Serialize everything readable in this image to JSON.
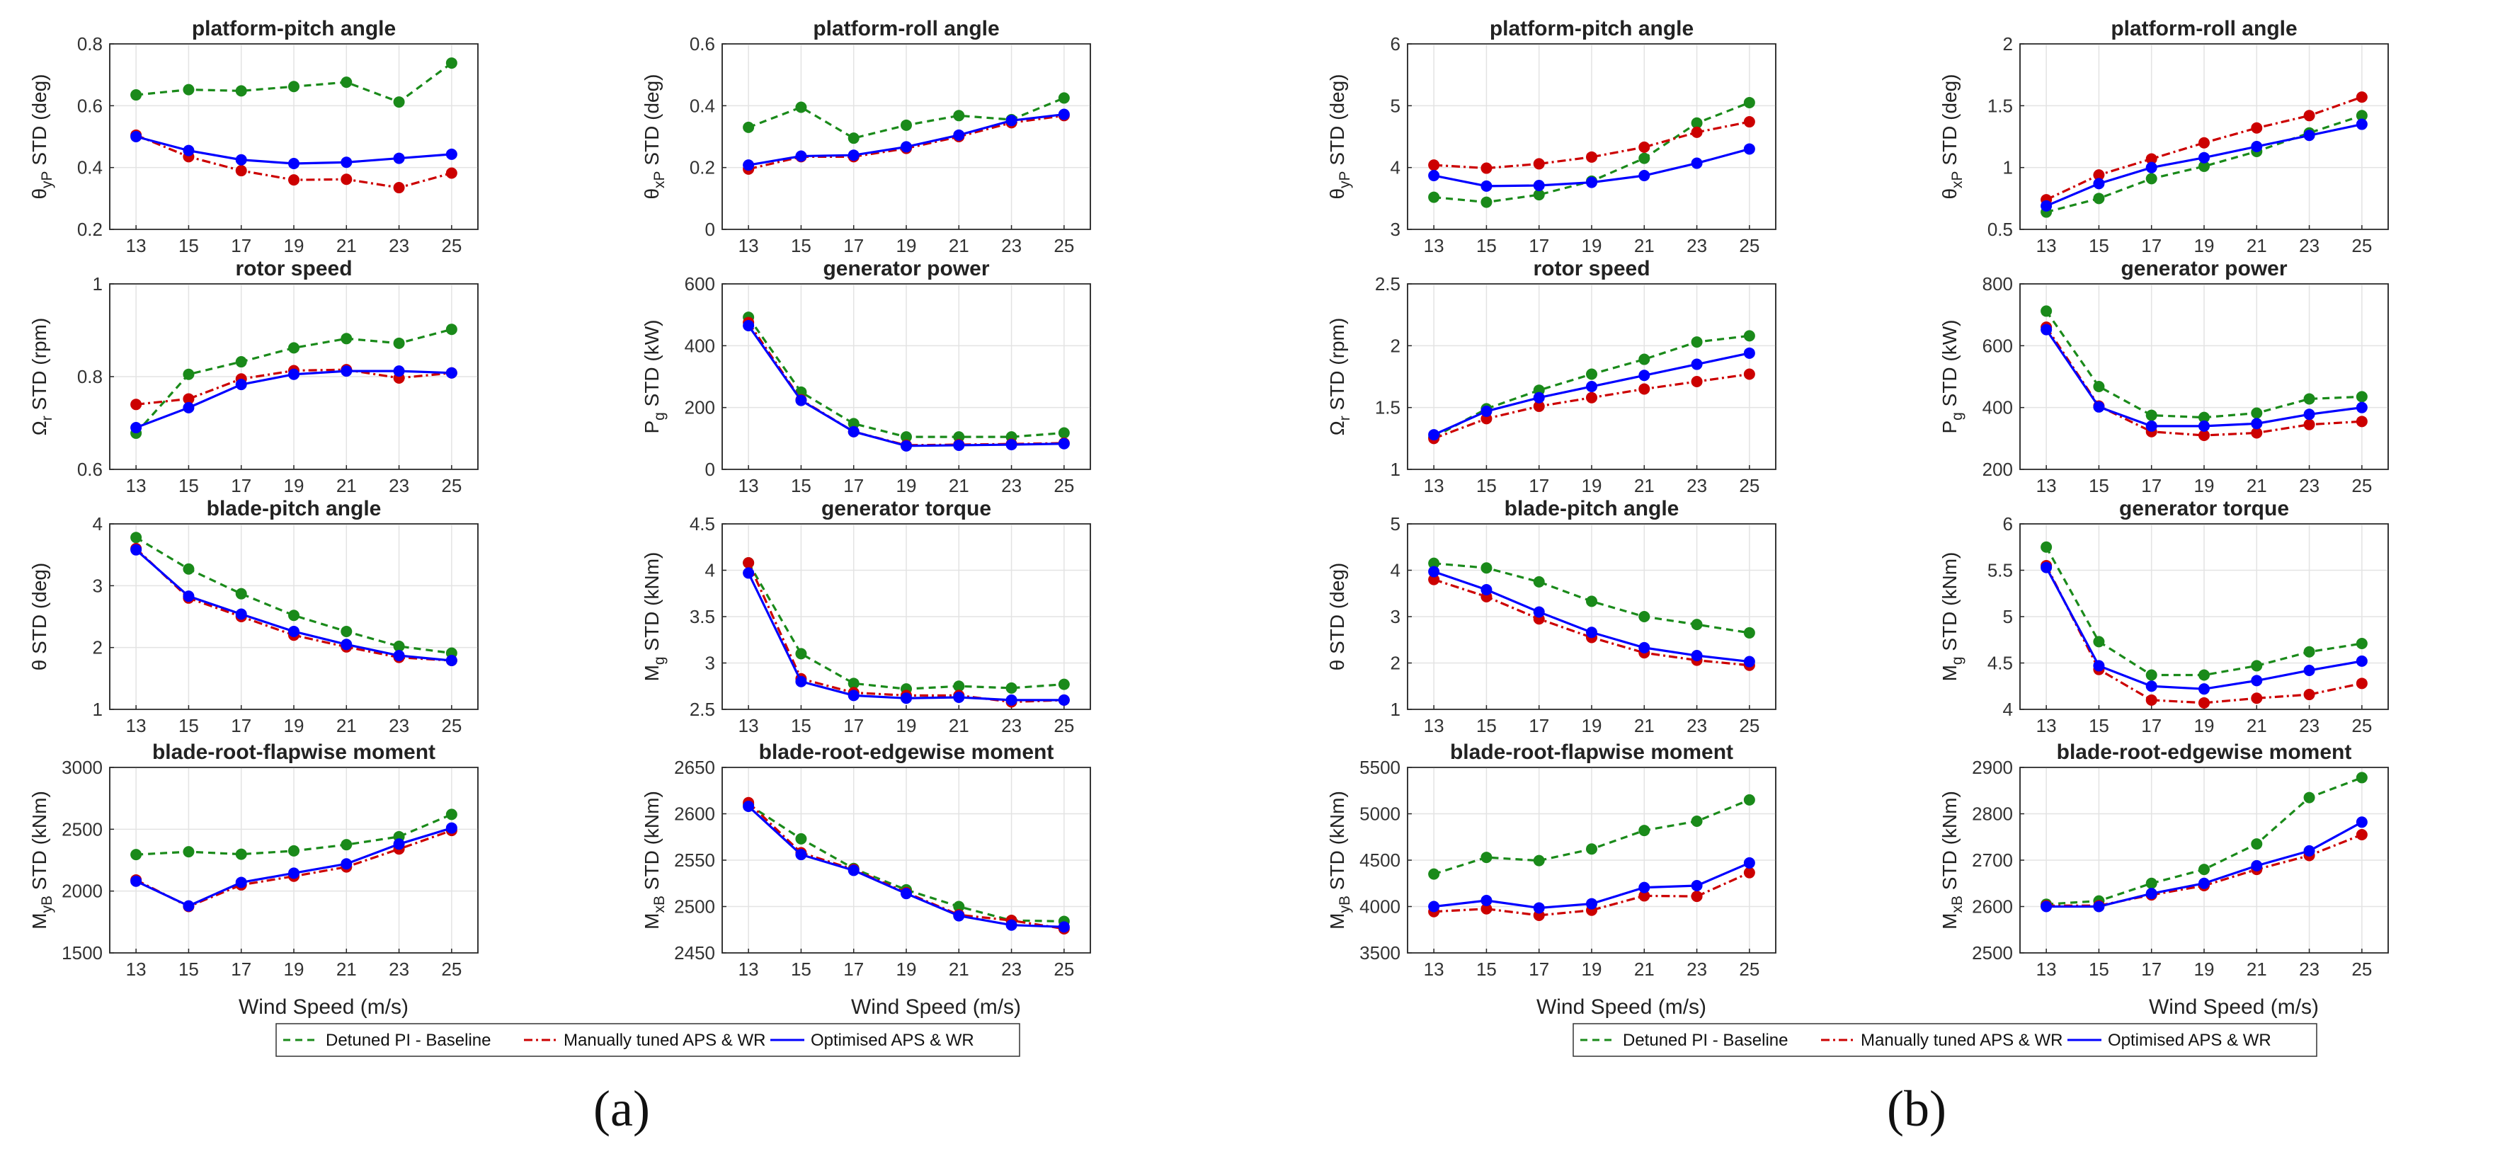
{
  "colors": {
    "baseline": "#1a8a1a",
    "manual": "#cc0000",
    "optimised": "#0000ff"
  },
  "panels": [
    {
      "label": "(a)",
      "xlabel": "Wind Speed (m/s)",
      "legend": [
        "Detuned PI - Baseline",
        "Manually tuned APS & WR",
        "Optimised APS & WR"
      ]
    },
    {
      "label": "(b)",
      "xlabel": "Wind Speed (m/s)",
      "legend": [
        "Detuned PI - Baseline",
        "Manually tuned APS & WR",
        "Optimised APS & WR"
      ]
    }
  ],
  "chart_data": [
    {
      "type": "line",
      "panel": "a",
      "title": "platform-pitch angle",
      "ylabel": "θ_yP STD (deg)",
      "ylim": [
        0.2,
        0.8
      ],
      "yticks": [
        0.2,
        0.4,
        0.6,
        0.8
      ],
      "yticklabels": [
        "0.2",
        "0.4",
        "0.6",
        "0.8"
      ],
      "x": [
        13,
        15,
        17,
        19,
        21,
        23,
        25
      ],
      "series": [
        {
          "name": "Detuned PI - Baseline",
          "values": [
            0.635,
            0.652,
            0.648,
            0.662,
            0.676,
            0.612,
            0.738
          ]
        },
        {
          "name": "Manually tuned APS & WR",
          "values": [
            0.505,
            0.435,
            0.39,
            0.36,
            0.362,
            0.335,
            0.382
          ]
        },
        {
          "name": "Optimised APS & WR",
          "values": [
            0.5,
            0.455,
            0.425,
            0.413,
            0.417,
            0.43,
            0.443
          ]
        }
      ]
    },
    {
      "type": "line",
      "panel": "a",
      "title": "platform-roll angle",
      "ylabel": "θ_xP STD (deg)",
      "ylim": [
        0,
        0.6
      ],
      "yticks": [
        0,
        0.2,
        0.4,
        0.6
      ],
      "yticklabels": [
        "0",
        "0.2",
        "0.4",
        "0.6"
      ],
      "x": [
        13,
        15,
        17,
        19,
        21,
        23,
        25
      ],
      "series": [
        {
          "name": "Detuned PI - Baseline",
          "values": [
            0.33,
            0.395,
            0.295,
            0.337,
            0.368,
            0.355,
            0.425
          ]
        },
        {
          "name": "Manually tuned APS & WR",
          "values": [
            0.195,
            0.235,
            0.235,
            0.262,
            0.3,
            0.345,
            0.368
          ]
        },
        {
          "name": "Optimised APS & WR",
          "values": [
            0.208,
            0.237,
            0.24,
            0.267,
            0.305,
            0.352,
            0.372
          ]
        }
      ]
    },
    {
      "type": "line",
      "panel": "b",
      "title": "platform-pitch angle",
      "ylabel": "θ_yP STD (deg)",
      "ylim": [
        3,
        6
      ],
      "yticks": [
        3,
        4,
        5,
        6
      ],
      "yticklabels": [
        "3",
        "4",
        "5",
        "6"
      ],
      "x": [
        13,
        15,
        17,
        19,
        21,
        23,
        25
      ],
      "series": [
        {
          "name": "Detuned PI - Baseline",
          "values": [
            3.52,
            3.44,
            3.56,
            3.78,
            4.15,
            4.72,
            5.05
          ]
        },
        {
          "name": "Manually tuned APS & WR",
          "values": [
            4.04,
            3.99,
            4.06,
            4.17,
            4.33,
            4.57,
            4.74
          ]
        },
        {
          "name": "Optimised APS & WR",
          "values": [
            3.87,
            3.7,
            3.71,
            3.76,
            3.87,
            4.07,
            4.3
          ]
        }
      ]
    },
    {
      "type": "line",
      "panel": "b",
      "title": "platform-roll angle",
      "ylabel": "θ_xP STD (deg)",
      "ylim": [
        0.5,
        2
      ],
      "yticks": [
        0.5,
        1,
        1.5,
        2
      ],
      "yticklabels": [
        "0.5",
        "1",
        "1.5",
        "2"
      ],
      "x": [
        13,
        15,
        17,
        19,
        21,
        23,
        25
      ],
      "series": [
        {
          "name": "Detuned PI - Baseline",
          "values": [
            0.64,
            0.75,
            0.91,
            1.01,
            1.13,
            1.28,
            1.42
          ]
        },
        {
          "name": "Manually tuned APS & WR",
          "values": [
            0.74,
            0.94,
            1.07,
            1.2,
            1.32,
            1.42,
            1.57
          ]
        },
        {
          "name": "Optimised APS & WR",
          "values": [
            0.69,
            0.87,
            1.0,
            1.08,
            1.17,
            1.26,
            1.35
          ]
        }
      ]
    },
    {
      "type": "line",
      "panel": "a",
      "title": "rotor speed",
      "ylabel": "Ω_r STD (rpm)",
      "ylim": [
        0.6,
        1
      ],
      "yticks": [
        0.6,
        0.8,
        1
      ],
      "yticklabels": [
        "0.6",
        "0.8",
        "1"
      ],
      "x": [
        13,
        15,
        17,
        19,
        21,
        23,
        25
      ],
      "series": [
        {
          "name": "Detuned PI - Baseline",
          "values": [
            0.678,
            0.805,
            0.832,
            0.862,
            0.882,
            0.872,
            0.902
          ]
        },
        {
          "name": "Manually tuned APS & WR",
          "values": [
            0.74,
            0.752,
            0.795,
            0.813,
            0.815,
            0.797,
            0.808
          ]
        },
        {
          "name": "Optimised APS & WR",
          "values": [
            0.69,
            0.733,
            0.783,
            0.805,
            0.812,
            0.812,
            0.808
          ]
        }
      ]
    },
    {
      "type": "line",
      "panel": "a",
      "title": "generator power",
      "ylabel": "P_g STD (kW)",
      "ylim": [
        0,
        600
      ],
      "yticks": [
        0,
        200,
        400,
        600
      ],
      "yticklabels": [
        "0",
        "200",
        "400",
        "600"
      ],
      "x": [
        13,
        15,
        17,
        19,
        21,
        23,
        25
      ],
      "series": [
        {
          "name": "Detuned PI - Baseline",
          "values": [
            492,
            250,
            148,
            105,
            105,
            105,
            118
          ]
        },
        {
          "name": "Manually tuned APS & WR",
          "values": [
            475,
            225,
            122,
            78,
            80,
            82,
            85
          ]
        },
        {
          "name": "Optimised APS & WR",
          "values": [
            465,
            223,
            122,
            76,
            78,
            80,
            83
          ]
        }
      ]
    },
    {
      "type": "line",
      "panel": "b",
      "title": "rotor speed",
      "ylabel": "Ω_r STD (rpm)",
      "ylim": [
        1,
        2.5
      ],
      "yticks": [
        1,
        1.5,
        2,
        2.5
      ],
      "yticklabels": [
        "1",
        "1.5",
        "2",
        "2.5"
      ],
      "x": [
        13,
        15,
        17,
        19,
        21,
        23,
        25
      ],
      "series": [
        {
          "name": "Detuned PI - Baseline",
          "values": [
            1.26,
            1.49,
            1.64,
            1.77,
            1.89,
            2.03,
            2.08
          ]
        },
        {
          "name": "Manually tuned APS & WR",
          "values": [
            1.25,
            1.41,
            1.51,
            1.58,
            1.65,
            1.71,
            1.77
          ]
        },
        {
          "name": "Optimised APS & WR",
          "values": [
            1.28,
            1.47,
            1.58,
            1.67,
            1.76,
            1.85,
            1.94
          ]
        }
      ]
    },
    {
      "type": "line",
      "panel": "b",
      "title": "generator power",
      "ylabel": "P_g STD (kW)",
      "ylim": [
        200,
        800
      ],
      "yticks": [
        200,
        400,
        600,
        800
      ],
      "yticklabels": [
        "200",
        "400",
        "600",
        "800"
      ],
      "x": [
        13,
        15,
        17,
        19,
        21,
        23,
        25
      ],
      "series": [
        {
          "name": "Detuned PI - Baseline",
          "values": [
            712,
            468,
            375,
            368,
            382,
            428,
            435
          ]
        },
        {
          "name": "Manually tuned APS & WR",
          "values": [
            660,
            405,
            322,
            310,
            318,
            345,
            355
          ]
        },
        {
          "name": "Optimised APS & WR",
          "values": [
            652,
            402,
            340,
            340,
            348,
            378,
            400
          ]
        }
      ]
    },
    {
      "type": "line",
      "panel": "a",
      "title": "blade-pitch angle",
      "ylabel": "θ STD (deg)",
      "ylim": [
        1,
        4
      ],
      "yticks": [
        1,
        2,
        3,
        4
      ],
      "yticklabels": [
        "1",
        "2",
        "3",
        "4"
      ],
      "x": [
        13,
        15,
        17,
        19,
        21,
        23,
        25
      ],
      "series": [
        {
          "name": "Detuned PI - Baseline",
          "values": [
            3.78,
            3.27,
            2.87,
            2.52,
            2.26,
            2.02,
            1.91
          ]
        },
        {
          "name": "Manually tuned APS & WR",
          "values": [
            3.6,
            2.8,
            2.5,
            2.2,
            2.01,
            1.84,
            1.79
          ]
        },
        {
          "name": "Optimised APS & WR",
          "values": [
            3.58,
            2.83,
            2.54,
            2.26,
            2.05,
            1.87,
            1.79
          ]
        }
      ]
    },
    {
      "type": "line",
      "panel": "a",
      "title": "generator torque",
      "ylabel": "M_g STD (kNm)",
      "ylim": [
        2.5,
        4.5
      ],
      "yticks": [
        2.5,
        3,
        3.5,
        4,
        4.5
      ],
      "yticklabels": [
        "2.5",
        "3",
        "3.5",
        "4",
        "4.5"
      ],
      "x": [
        13,
        15,
        17,
        19,
        21,
        23,
        25
      ],
      "series": [
        {
          "name": "Detuned PI - Baseline",
          "values": [
            4.08,
            3.1,
            2.78,
            2.72,
            2.75,
            2.73,
            2.77
          ]
        },
        {
          "name": "Manually tuned APS & WR",
          "values": [
            4.08,
            2.83,
            2.68,
            2.65,
            2.65,
            2.58,
            2.6
          ]
        },
        {
          "name": "Optimised APS & WR",
          "values": [
            3.97,
            2.8,
            2.65,
            2.62,
            2.63,
            2.6,
            2.6
          ]
        }
      ]
    },
    {
      "type": "line",
      "panel": "b",
      "title": "blade-pitch angle",
      "ylabel": "θ STD (deg)",
      "ylim": [
        1,
        5
      ],
      "yticks": [
        1,
        2,
        3,
        4,
        5
      ],
      "yticklabels": [
        "1",
        "2",
        "3",
        "4",
        "5"
      ],
      "x": [
        13,
        15,
        17,
        19,
        21,
        23,
        25
      ],
      "series": [
        {
          "name": "Detuned PI - Baseline",
          "values": [
            4.15,
            4.05,
            3.75,
            3.33,
            3.0,
            2.83,
            2.65
          ]
        },
        {
          "name": "Manually tuned APS & WR",
          "values": [
            3.8,
            3.43,
            2.95,
            2.55,
            2.22,
            2.06,
            1.95
          ]
        },
        {
          "name": "Optimised APS & WR",
          "values": [
            3.97,
            3.58,
            3.1,
            2.66,
            2.33,
            2.16,
            2.03
          ]
        }
      ]
    },
    {
      "type": "line",
      "panel": "b",
      "title": "generator torque",
      "ylabel": "M_g STD (kNm)",
      "ylim": [
        4,
        6
      ],
      "yticks": [
        4,
        4.5,
        5,
        5.5,
        6
      ],
      "yticklabels": [
        "4",
        "4.5",
        "5",
        "5.5",
        "6"
      ],
      "x": [
        13,
        15,
        17,
        19,
        21,
        23,
        25
      ],
      "series": [
        {
          "name": "Detuned PI - Baseline",
          "values": [
            5.75,
            4.73,
            4.37,
            4.37,
            4.47,
            4.62,
            4.71
          ]
        },
        {
          "name": "Manually tuned APS & WR",
          "values": [
            5.55,
            4.43,
            4.1,
            4.07,
            4.12,
            4.16,
            4.28
          ]
        },
        {
          "name": "Optimised APS & WR",
          "values": [
            5.53,
            4.47,
            4.25,
            4.22,
            4.31,
            4.42,
            4.52
          ]
        }
      ]
    },
    {
      "type": "line",
      "panel": "a",
      "title": "blade-root-flapwise moment",
      "ylabel": "M_yB STD (kNm)",
      "ylim": [
        1500,
        3000
      ],
      "yticks": [
        1500,
        2000,
        2500,
        3000
      ],
      "yticklabels": [
        "1500",
        "2000",
        "2500",
        "3000"
      ],
      "x": [
        13,
        15,
        17,
        19,
        21,
        23,
        25
      ],
      "series": [
        {
          "name": "Detuned PI - Baseline",
          "values": [
            2295,
            2318,
            2298,
            2325,
            2375,
            2440,
            2620
          ]
        },
        {
          "name": "Manually tuned APS & WR",
          "values": [
            2090,
            1875,
            2050,
            2120,
            2195,
            2340,
            2490
          ]
        },
        {
          "name": "Optimised APS & WR",
          "values": [
            2080,
            1880,
            2070,
            2145,
            2220,
            2380,
            2510
          ]
        }
      ]
    },
    {
      "type": "line",
      "panel": "a",
      "title": "blade-root-edgewise moment",
      "ylabel": "M_xB STD (kNm)",
      "ylim": [
        2450,
        2650
      ],
      "yticks": [
        2450,
        2500,
        2550,
        2600,
        2650
      ],
      "yticklabels": [
        "2450",
        "2500",
        "2550",
        "2600",
        "2650"
      ],
      "x": [
        13,
        15,
        17,
        19,
        21,
        23,
        25
      ],
      "series": [
        {
          "name": "Detuned PI - Baseline",
          "values": [
            2610,
            2573,
            2541,
            2518,
            2500,
            2485,
            2484
          ]
        },
        {
          "name": "Manually tuned APS & WR",
          "values": [
            2612,
            2558,
            2540,
            2515,
            2491,
            2485,
            2476
          ]
        },
        {
          "name": "Optimised APS & WR",
          "values": [
            2608,
            2556,
            2539,
            2514,
            2490,
            2480,
            2478
          ]
        }
      ]
    },
    {
      "type": "line",
      "panel": "b",
      "title": "blade-root-flapwise moment",
      "ylabel": "M_yB STD (kNm)",
      "ylim": [
        3500,
        5500
      ],
      "yticks": [
        3500,
        4000,
        4500,
        5000,
        5500
      ],
      "yticklabels": [
        "3500",
        "4000",
        "4500",
        "5000",
        "5500"
      ],
      "x": [
        13,
        15,
        17,
        19,
        21,
        23,
        25
      ],
      "series": [
        {
          "name": "Detuned PI - Baseline",
          "values": [
            4350,
            4530,
            4495,
            4620,
            4820,
            4920,
            5150
          ]
        },
        {
          "name": "Manually tuned APS & WR",
          "values": [
            3945,
            3975,
            3905,
            3960,
            4115,
            4110,
            4365
          ]
        },
        {
          "name": "Optimised APS & WR",
          "values": [
            4000,
            4065,
            3985,
            4030,
            4205,
            4225,
            4470
          ]
        }
      ]
    },
    {
      "type": "line",
      "panel": "b",
      "title": "blade-root-edgewise moment",
      "ylabel": "M_xB STD (kNm)",
      "ylim": [
        2500,
        2900
      ],
      "yticks": [
        2500,
        2600,
        2700,
        2800,
        2900
      ],
      "yticklabels": [
        "2500",
        "2600",
        "2700",
        "2800",
        "2900"
      ],
      "x": [
        13,
        15,
        17,
        19,
        21,
        23,
        25
      ],
      "series": [
        {
          "name": "Detuned PI - Baseline",
          "values": [
            2605,
            2612,
            2650,
            2680,
            2735,
            2835,
            2878
          ]
        },
        {
          "name": "Manually tuned APS & WR",
          "values": [
            2602,
            2602,
            2625,
            2645,
            2680,
            2710,
            2755
          ]
        },
        {
          "name": "Optimised APS & WR",
          "values": [
            2600,
            2600,
            2628,
            2650,
            2688,
            2720,
            2782
          ]
        }
      ]
    }
  ]
}
